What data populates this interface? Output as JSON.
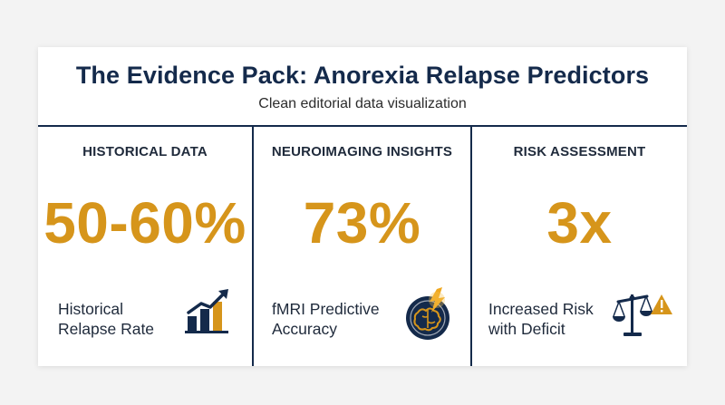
{
  "header": {
    "title": "The Evidence Pack: Anorexia Relapse Predictors",
    "subtitle": "Clean editorial data visualization"
  },
  "colors": {
    "navy": "#142a4b",
    "gold": "#d6951b",
    "text": "#1f2a3b"
  },
  "panels": [
    {
      "heading": "HISTORICAL DATA",
      "stat": "50-60%",
      "caption_line1": "Historical",
      "caption_line2": "Relapse Rate",
      "icon": "bar-chart-up-icon"
    },
    {
      "heading": "NEUROIMAGING INSIGHTS",
      "stat": "73%",
      "caption_line1": "fMRI Predictive",
      "caption_line2": "Accuracy",
      "icon": "brain-scan-icon"
    },
    {
      "heading": "RISK ASSESSMENT",
      "stat": "3x",
      "caption_line1": "Increased Risk",
      "caption_line2": "with Deficit",
      "icon": "scale-warning-icon"
    }
  ]
}
